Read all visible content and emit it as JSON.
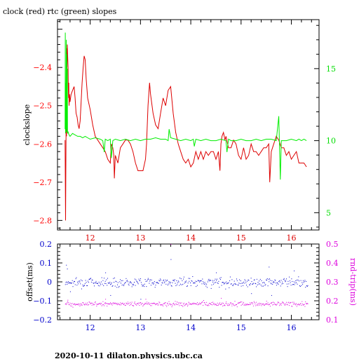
{
  "header": {
    "title": "clock (red) rtc (green) slopes"
  },
  "footer": {
    "text": "2020-10-11  dilaton.physics.ubc.ca"
  },
  "colors": {
    "clock": "#dd0000",
    "rtc": "#00ee00",
    "offset": "#0000cc",
    "rndtrip": "#dd00dd",
    "axes": "#000000",
    "red_ticks": "#ff0000",
    "green_ticks": "#00dd00"
  },
  "chart_data": [
    {
      "type": "line",
      "title": "clock (red) rtc (green) slopes",
      "ylabel": "clockslope",
      "xlim": [
        11.35,
        16.55
      ],
      "ylim": [
        -2.825,
        -2.275
      ],
      "y2lim": [
        3.8,
        18.4
      ],
      "x_ticks": [
        12,
        13,
        14,
        15,
        16
      ],
      "y_ticks": [
        -2.8,
        -2.7,
        -2.6,
        -2.5,
        -2.4
      ],
      "y2_ticks": [
        5,
        10,
        15
      ],
      "series": [
        {
          "name": "clock",
          "axis": "left",
          "color": "#dd0000",
          "x": [
            11.5,
            11.51,
            11.52,
            11.525,
            11.53,
            11.535,
            11.54,
            11.545,
            11.55,
            11.56,
            11.565,
            11.57,
            11.575,
            11.58,
            11.59,
            11.6,
            11.62,
            11.65,
            11.68,
            11.7,
            11.72,
            11.74,
            11.76,
            11.78,
            11.8,
            11.82,
            11.84,
            11.86,
            11.88,
            11.9,
            11.92,
            11.95,
            12.0,
            12.05,
            12.1,
            12.15,
            12.2,
            12.25,
            12.3,
            12.35,
            12.4,
            12.42,
            12.45,
            12.47,
            12.48,
            12.5,
            12.55,
            12.6,
            12.65,
            12.7,
            12.75,
            12.8,
            12.85,
            12.9,
            12.95,
            13.0,
            13.05,
            13.1,
            13.12,
            13.15,
            13.18,
            13.2,
            13.25,
            13.3,
            13.35,
            13.4,
            13.45,
            13.5,
            13.55,
            13.6,
            13.65,
            13.7,
            13.75,
            13.8,
            13.85,
            13.9,
            13.95,
            14.0,
            14.05,
            14.1,
            14.15,
            14.2,
            14.25,
            14.3,
            14.35,
            14.4,
            14.45,
            14.5,
            14.55,
            14.58,
            14.6,
            14.62,
            14.65,
            14.68,
            14.7,
            14.75,
            14.8,
            14.85,
            14.9,
            14.95,
            15.0,
            15.05,
            15.1,
            15.15,
            15.2,
            15.25,
            15.3,
            15.35,
            15.4,
            15.45,
            15.5,
            15.55,
            15.57,
            15.6,
            15.65,
            15.7,
            15.75,
            15.8,
            15.85,
            15.9,
            15.95,
            16.0,
            16.05,
            16.1,
            16.15,
            16.2,
            16.25,
            16.3
          ],
          "y": [
            -2.59,
            -2.8,
            -2.57,
            -2.36,
            -2.58,
            -2.35,
            -2.4,
            -2.34,
            -2.36,
            -2.4,
            -2.45,
            -2.48,
            -2.44,
            -2.5,
            -2.47,
            -2.49,
            -2.47,
            -2.46,
            -2.45,
            -2.48,
            -2.52,
            -2.53,
            -2.55,
            -2.56,
            -2.54,
            -2.49,
            -2.44,
            -2.4,
            -2.37,
            -2.38,
            -2.43,
            -2.48,
            -2.51,
            -2.55,
            -2.58,
            -2.59,
            -2.6,
            -2.61,
            -2.62,
            -2.64,
            -2.65,
            -2.6,
            -2.61,
            -2.63,
            -2.69,
            -2.63,
            -2.65,
            -2.61,
            -2.6,
            -2.59,
            -2.59,
            -2.6,
            -2.62,
            -2.65,
            -2.67,
            -2.67,
            -2.67,
            -2.64,
            -2.6,
            -2.5,
            -2.44,
            -2.47,
            -2.52,
            -2.55,
            -2.56,
            -2.52,
            -2.48,
            -2.5,
            -2.46,
            -2.45,
            -2.52,
            -2.57,
            -2.6,
            -2.62,
            -2.64,
            -2.65,
            -2.64,
            -2.66,
            -2.65,
            -2.62,
            -2.64,
            -2.62,
            -2.64,
            -2.62,
            -2.63,
            -2.62,
            -2.62,
            -2.64,
            -2.62,
            -2.67,
            -2.6,
            -2.58,
            -2.57,
            -2.59,
            -2.58,
            -2.61,
            -2.61,
            -2.59,
            -2.6,
            -2.63,
            -2.64,
            -2.61,
            -2.64,
            -2.63,
            -2.6,
            -2.62,
            -2.62,
            -2.63,
            -2.62,
            -2.61,
            -2.61,
            -2.6,
            -2.7,
            -2.62,
            -2.6,
            -2.58,
            -2.59,
            -2.61,
            -2.61,
            -2.63,
            -2.62,
            -2.64,
            -2.63,
            -2.62,
            -2.65,
            -2.65,
            -2.65,
            -2.66
          ]
        },
        {
          "name": "rtc",
          "axis": "right",
          "color": "#00ee00",
          "x": [
            11.5,
            11.505,
            11.51,
            11.515,
            11.52,
            11.525,
            11.53,
            11.535,
            11.54,
            11.545,
            11.55,
            11.56,
            11.58,
            11.6,
            11.65,
            11.7,
            11.75,
            11.8,
            11.85,
            11.9,
            11.95,
            12.0,
            12.1,
            12.2,
            12.25,
            12.28,
            12.3,
            12.35,
            12.4,
            12.42,
            12.45,
            12.5,
            12.6,
            12.7,
            12.8,
            12.9,
            13.0,
            13.1,
            13.2,
            13.3,
            13.4,
            13.5,
            13.55,
            13.57,
            13.6,
            13.7,
            13.8,
            13.9,
            14.0,
            14.05,
            14.07,
            14.1,
            14.2,
            14.3,
            14.4,
            14.5,
            14.6,
            14.7,
            14.72,
            14.75,
            14.8,
            14.9,
            15.0,
            15.1,
            15.2,
            15.3,
            15.4,
            15.5,
            15.6,
            15.7,
            15.75,
            15.78,
            15.8,
            15.9,
            16.0,
            16.1,
            16.15,
            16.2,
            16.25,
            16.3
          ],
          "y": [
            10.8,
            17.5,
            10.5,
            14.0,
            10.6,
            17.0,
            10.8,
            16.0,
            10.6,
            15.0,
            10.5,
            10.6,
            10.4,
            10.3,
            10.5,
            10.4,
            10.3,
            10.3,
            10.2,
            10.3,
            10.2,
            10.1,
            10.2,
            10.1,
            10.0,
            9.2,
            10.1,
            10.0,
            10.1,
            8.8,
            10.0,
            10.1,
            10.0,
            10.1,
            10.0,
            10.1,
            10.0,
            10.1,
            10.1,
            10.2,
            10.1,
            10.1,
            10.0,
            10.8,
            10.2,
            10.1,
            10.0,
            10.1,
            10.0,
            10.1,
            9.6,
            10.1,
            10.0,
            10.1,
            10.0,
            10.0,
            10.1,
            10.0,
            9.2,
            10.1,
            10.0,
            10.0,
            10.1,
            10.0,
            10.0,
            10.1,
            10.0,
            10.1,
            10.1,
            10.0,
            11.7,
            7.3,
            10.0,
            10.0,
            10.1,
            10.0,
            10.1,
            10.0,
            10.1,
            10.0
          ]
        }
      ]
    },
    {
      "type": "scatter",
      "ylabel": "offset(ms)",
      "y2label": "rnd-trip(ms)",
      "xlim": [
        11.35,
        16.55
      ],
      "ylim": [
        -0.2,
        0.2
      ],
      "y2lim": [
        0.1,
        0.5
      ],
      "x_ticks": [
        12,
        13,
        14,
        15,
        16
      ],
      "y_ticks": [
        -0.2,
        -0.1,
        0,
        0.1,
        0.2
      ],
      "y2_ticks": [
        0.1,
        0.2,
        0.3,
        0.4,
        0.5
      ],
      "x_range": [
        11.5,
        16.32
      ],
      "series": [
        {
          "name": "offset",
          "axis": "left",
          "color": "#0000cc",
          "center": 0.0,
          "spread": 0.012,
          "outliers": [
            [
              11.52,
              0.09
            ],
            [
              11.54,
              0.07
            ],
            [
              11.6,
              -0.05
            ],
            [
              12.3,
              0.05
            ],
            [
              12.4,
              -0.07
            ],
            [
              13.0,
              -0.09
            ],
            [
              13.6,
              0.12
            ],
            [
              14.5,
              0.05
            ],
            [
              15.2,
              -0.06
            ],
            [
              15.55,
              0.08
            ],
            [
              15.6,
              -0.07
            ],
            [
              16.05,
              0.06
            ]
          ]
        },
        {
          "name": "rnd-trip",
          "axis": "right",
          "color": "#dd00dd",
          "center": 0.185,
          "spread": 0.006,
          "outliers": [
            [
              11.55,
              0.205
            ],
            [
              12.3,
              0.21
            ],
            [
              13.1,
              0.21
            ],
            [
              13.6,
              0.5
            ],
            [
              14.6,
              0.215
            ],
            [
              15.5,
              0.2
            ]
          ]
        }
      ]
    }
  ]
}
